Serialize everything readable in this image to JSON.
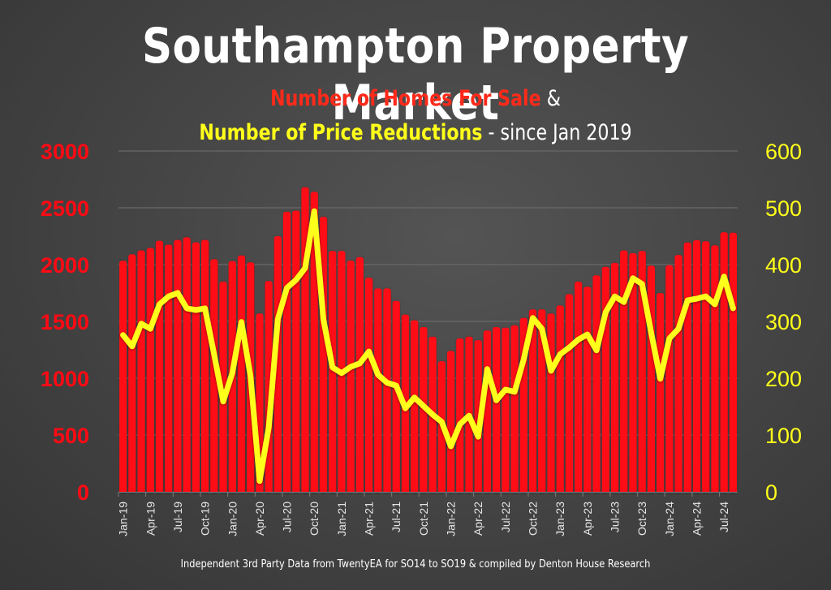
{
  "title": "Southampton Property Market",
  "subtitle_line1": {
    "red_text": "Number of Homes For Sale",
    "white_text": "&"
  },
  "subtitle_line2": {
    "yellow_text": "Number of Price Reductions",
    "white_text": "- since Jan 2019"
  },
  "footer": "Independent 3rd Party Data from TwentyEA for SO14 to SO19 & compiled by Denton House Research",
  "colors": {
    "bars": "#ff0a14",
    "line": "#ffff1a",
    "left_axis": "#ff0a14",
    "right_axis": "#ffff1a",
    "background": "#474747"
  },
  "chart_data": {
    "type": "bar+line",
    "title": "Southampton Property Market",
    "subtitle": "Number of Homes For Sale & Number of Price Reductions - since Jan 2019",
    "xlabel": "",
    "left_ylabel": "Number of Homes For Sale",
    "right_ylabel": "Number of Price Reductions",
    "left_ylim": [
      0,
      3000
    ],
    "right_ylim": [
      0,
      600
    ],
    "left_yticks": [
      "0",
      "500",
      "1000",
      "1500",
      "2000",
      "2500",
      "3000"
    ],
    "right_yticks": [
      "0",
      "100",
      "200",
      "300",
      "400",
      "500",
      "600"
    ],
    "grid": true,
    "x": [
      "Jan-19",
      "Feb-19",
      "Mar-19",
      "Apr-19",
      "May-19",
      "Jun-19",
      "Jul-19",
      "Aug-19",
      "Sep-19",
      "Oct-19",
      "Nov-19",
      "Dec-19",
      "Jan-20",
      "Feb-20",
      "Mar-20",
      "Apr-20",
      "May-20",
      "Jun-20",
      "Jul-20",
      "Aug-20",
      "Sep-20",
      "Oct-20",
      "Nov-20",
      "Dec-20",
      "Jan-21",
      "Feb-21",
      "Mar-21",
      "Apr-21",
      "May-21",
      "Jun-21",
      "Jul-21",
      "Aug-21",
      "Sep-21",
      "Oct-21",
      "Nov-21",
      "Dec-21",
      "Jan-22",
      "Feb-22",
      "Mar-22",
      "Apr-22",
      "May-22",
      "Jun-22",
      "Jul-22",
      "Aug-22",
      "Sep-22",
      "Oct-22",
      "Nov-22",
      "Dec-22",
      "Jan-23",
      "Feb-23",
      "Mar-23",
      "Apr-23",
      "May-23",
      "Jun-23",
      "Jul-23",
      "Aug-23",
      "Sep-23",
      "Oct-23",
      "Nov-23",
      "Dec-23",
      "Jan-24",
      "Feb-24",
      "Mar-24",
      "Apr-24",
      "May-24",
      "Jun-24",
      "Jul-24",
      "Aug-24"
    ],
    "x_tick_labels": [
      "Jan-19",
      "Apr-19",
      "Jul-19",
      "Oct-19",
      "Jan-20",
      "Apr-20",
      "Jul-20",
      "Oct-20",
      "Jan-21",
      "Apr-21",
      "Jul-21",
      "Oct-21",
      "Jan-22",
      "Apr-22",
      "Jul-22",
      "Oct-22",
      "Jan-23",
      "Apr-23",
      "Jul-23",
      "Oct-23",
      "Jan-24",
      "Apr-24",
      "Jul-24"
    ],
    "series": [
      {
        "name": "Number of Homes For Sale",
        "type": "bar",
        "axis": "left",
        "values": [
          2033,
          2090,
          2125,
          2146,
          2210,
          2175,
          2217,
          2240,
          2196,
          2217,
          2047,
          1850,
          2030,
          2080,
          2020,
          1570,
          1855,
          2250,
          2465,
          2475,
          2680,
          2640,
          2420,
          2120,
          2120,
          2035,
          2065,
          1885,
          1790,
          1790,
          1680,
          1560,
          1510,
          1450,
          1365,
          1150,
          1240,
          1350,
          1365,
          1335,
          1420,
          1450,
          1445,
          1465,
          1530,
          1605,
          1605,
          1570,
          1640,
          1740,
          1850,
          1805,
          1905,
          1980,
          2015,
          2125,
          2100,
          2120,
          1990,
          1750,
          1995,
          2085,
          2195,
          2215,
          2205,
          2170,
          2285,
          2280
        ]
      },
      {
        "name": "Number of Price Reductions",
        "type": "line",
        "axis": "right",
        "values": [
          276,
          256,
          296,
          287,
          330,
          344,
          350,
          323,
          320,
          323,
          242,
          159,
          209,
          299,
          204,
          19,
          113,
          304,
          359,
          373,
          394,
          494,
          304,
          219,
          209,
          220,
          226,
          247,
          206,
          192,
          187,
          147,
          166,
          151,
          136,
          123,
          80,
          119,
          134,
          97,
          216,
          161,
          180,
          176,
          233,
          306,
          287,
          213,
          242,
          254,
          268,
          277,
          249,
          316,
          344,
          334,
          376,
          366,
          280,
          199,
          270,
          287,
          337,
          340,
          344,
          330,
          379,
          323
        ]
      }
    ]
  }
}
